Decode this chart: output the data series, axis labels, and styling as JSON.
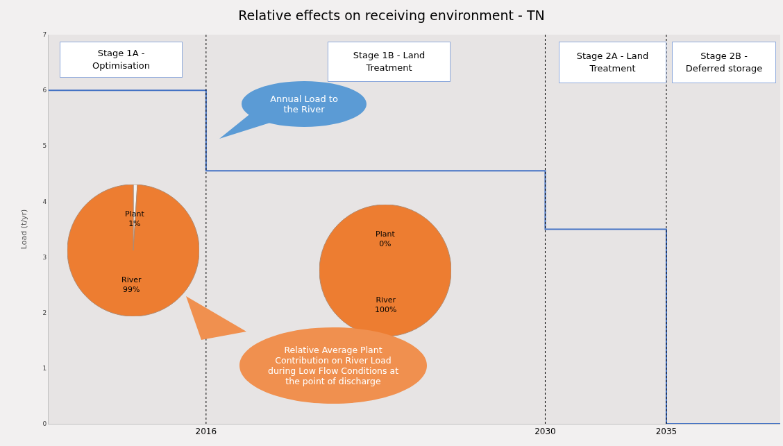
{
  "chart_data": [
    {
      "type": "step",
      "title": "Relative effects on receiving environment - TN",
      "ylabel": "Load (t/yr)",
      "x": [
        2009.5,
        2016,
        2030,
        2035,
        2039.7
      ],
      "values": [
        6,
        4.55,
        3.5,
        0,
        0
      ],
      "color": "#4472c4",
      "xlim": [
        2009.5,
        2039.7
      ],
      "xticks": [
        2016,
        2030,
        2035
      ],
      "ylim": [
        0,
        7
      ],
      "yticks": [
        0,
        1,
        2,
        3,
        4,
        5,
        6,
        7
      ],
      "grid": false,
      "ref_lines": [
        {
          "axis": "x",
          "value": 2016,
          "color": "#000000",
          "line_style": "dotted"
        },
        {
          "axis": "x",
          "value": 2030,
          "color": "#000000",
          "line_style": "dotted"
        },
        {
          "axis": "x",
          "value": 2035,
          "color": "#000000",
          "line_style": "dotted"
        }
      ],
      "annotations": [
        "Stage 1A - Optimisation",
        "Stage 1B - Land Treatment",
        "Stage 2A -  Land Treatment",
        "Stage 2B - Deferred storage",
        "Annual Load to the River",
        "Relative Average Plant Contribution on River Load during Low Flow Conditions at the point of discharge"
      ]
    },
    {
      "type": "pie",
      "categories": [
        "Plant",
        "River"
      ],
      "values": [
        1,
        99
      ],
      "colors": [
        "#f2f2f2",
        "#ed7d31"
      ],
      "value_labels": [
        "1%",
        "99%"
      ]
    },
    {
      "type": "pie",
      "categories": [
        "Plant",
        "River"
      ],
      "values": [
        0,
        100
      ],
      "colors": [
        "#f2f2f2",
        "#ed7d31"
      ],
      "value_labels": [
        "0%",
        "100%"
      ]
    }
  ]
}
